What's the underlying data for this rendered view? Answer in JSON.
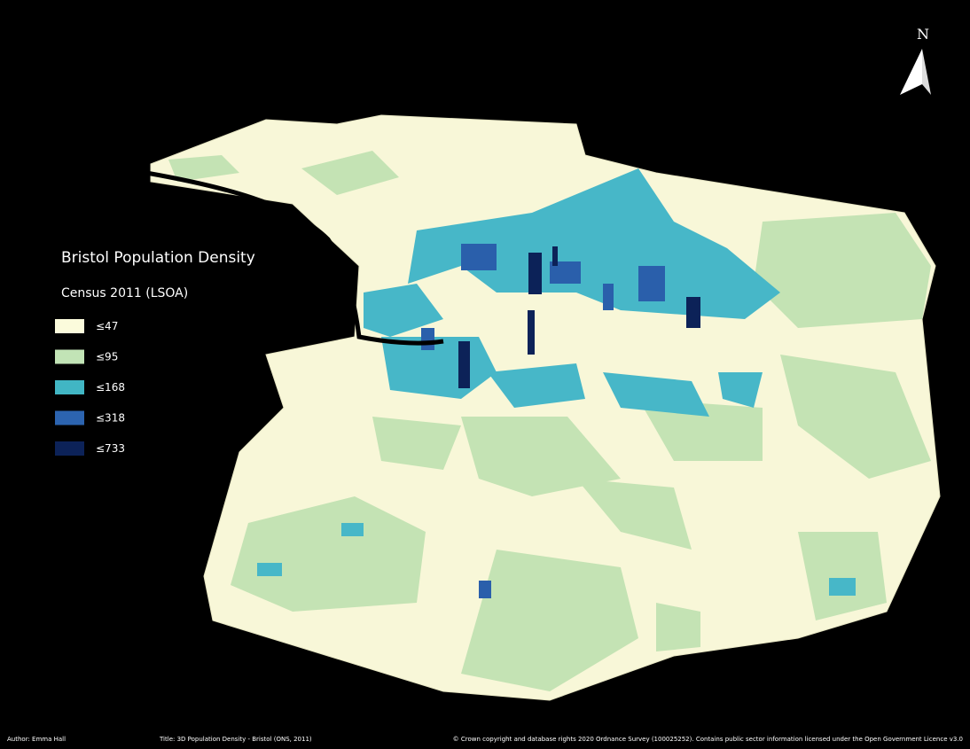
{
  "north": "N",
  "legend": {
    "title": "Bristol Population Density",
    "subtitle": "Census 2011 (LSOA)",
    "items": [
      {
        "label": "≤47",
        "color": "#fbfbdc"
      },
      {
        "label": "≤95",
        "color": "#c2e4b6"
      },
      {
        "label": "≤168",
        "color": "#41b6c4"
      },
      {
        "label": "≤318",
        "color": "#2c64b0"
      },
      {
        "label": "≤733",
        "color": "#0c2258"
      }
    ]
  },
  "footer": {
    "author": "Author: Emma Hall",
    "title": "Title: 3D Population Density - Bristol (ONS, 2011)",
    "credits": "© Crown copyright and database rights 2020 Ordnance Survey (100025252). Contains public sector information licensed under the Open Government Licence v3.0"
  }
}
